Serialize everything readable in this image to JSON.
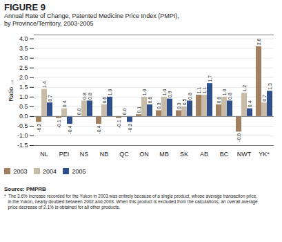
{
  "chart_data": {
    "type": "bar",
    "title": "FIGURE 9",
    "subtitle": "Annual Rate of Change, Patented Medicine Price Index (PMPI),\nby Province/Territory, 2003-2005",
    "ylabel": "Ratio",
    "categories": [
      "NL",
      "PEI",
      "NS",
      "NB",
      "QC",
      "ON",
      "MB",
      "SK",
      "AB",
      "BC",
      "NWT",
      "YK*"
    ],
    "series": [
      {
        "name": "2003",
        "color": "#a08060",
        "values": [
          -0.3,
          -0.1,
          0.0,
          -0.4,
          -0.1,
          0.1,
          0.3,
          0.3,
          1.1,
          0.6,
          -0.8,
          3.6
        ],
        "value_labels": [
          "-0.3",
          "-0.1",
          "0.0",
          "-0.4",
          "-0.1",
          "0.1",
          "0.3",
          "0.3",
          "1.1",
          "0.6",
          "-0.8",
          "3.6"
        ]
      },
      {
        "name": "2004",
        "color": "#c8bca8",
        "values": [
          1.4,
          0.4,
          0.8,
          0.6,
          0.0,
          1.0,
          1.0,
          0.5,
          1.1,
          1.0,
          1.2,
          0.7
        ],
        "value_labels": [
          "1.4",
          "0.4",
          "0.8",
          "0.6",
          "0.0",
          "1.0",
          "1.0",
          "0.5",
          "1.1",
          "1.0",
          "1.2",
          "0.7"
        ]
      },
      {
        "name": "2005",
        "color": "#2e4f8c",
        "values": [
          0.7,
          -0.4,
          0.8,
          1.0,
          -0.3,
          0.6,
          0.9,
          0.8,
          1.7,
          0.8,
          0.4,
          1.3
        ],
        "value_labels": [
          "0.7",
          "-0.4",
          "0.8",
          "1.0",
          "-0.3",
          "0.6",
          "0.9",
          "0.8",
          "1.7",
          "0.8",
          "0.4",
          "1.3"
        ]
      }
    ],
    "ylim": [
      -1.5,
      4.2
    ],
    "yticks": [
      -1.5,
      {
        "value": -1,
        "label": "-1.0"
      },
      -0.5,
      {
        "value": 0,
        "label": "0.0"
      },
      0.5,
      {
        "value": 1,
        "label": "1.0"
      },
      1.5,
      {
        "value": 2,
        "label": "2.0"
      },
      2.5,
      {
        "value": 3,
        "label": "3.0"
      },
      3.5,
      {
        "value": 4,
        "label": "4.0"
      }
    ],
    "grid": true,
    "legend": "bottom",
    "data_labels": true,
    "source": "Source: PMPRB",
    "footnote": "*  The 3.6% increase recorded for the Yukon in 2003 was entirely because of a single product, whose average transaction price,\n   in the Yukon, nearly doubled between 2002 and 2003. When this product is excluded from the calculations, an overall average\n   price decrease of 2.1% is obtained for all other products."
  }
}
